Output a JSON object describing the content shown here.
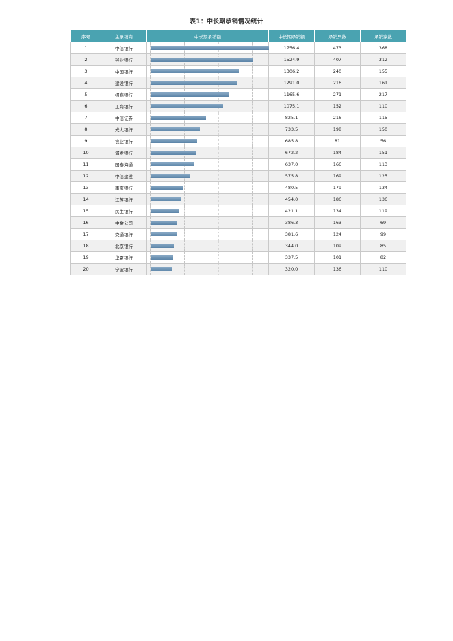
{
  "title": "表1：中长期承销情况统计",
  "headers": [
    "序号",
    "主承销商",
    "中长期承销额",
    "中长期承销额",
    "承销只数",
    "承销家数"
  ],
  "rows": [
    {
      "rank": "1",
      "name": "中信银行",
      "amount": "1756.4",
      "count": "473",
      "issuers": "368"
    },
    {
      "rank": "2",
      "name": "兴业银行",
      "amount": "1524.9",
      "count": "407",
      "issuers": "312"
    },
    {
      "rank": "3",
      "name": "中国银行",
      "amount": "1306.2",
      "count": "240",
      "issuers": "155"
    },
    {
      "rank": "4",
      "name": "建设银行",
      "amount": "1291.0",
      "count": "216",
      "issuers": "161"
    },
    {
      "rank": "5",
      "name": "招商银行",
      "amount": "1165.6",
      "count": "271",
      "issuers": "217"
    },
    {
      "rank": "6",
      "name": "工商银行",
      "amount": "1075.1",
      "count": "152",
      "issuers": "110"
    },
    {
      "rank": "7",
      "name": "中信证券",
      "amount": "825.1",
      "count": "216",
      "issuers": "115"
    },
    {
      "rank": "8",
      "name": "光大银行",
      "amount": "733.5",
      "count": "198",
      "issuers": "150"
    },
    {
      "rank": "9",
      "name": "农业银行",
      "amount": "685.8",
      "count": "81",
      "issuers": "56"
    },
    {
      "rank": "10",
      "name": "浦发银行",
      "amount": "672.2",
      "count": "184",
      "issuers": "151"
    },
    {
      "rank": "11",
      "name": "国泰海通",
      "amount": "637.0",
      "count": "166",
      "issuers": "113"
    },
    {
      "rank": "12",
      "name": "中信建投",
      "amount": "575.8",
      "count": "169",
      "issuers": "125"
    },
    {
      "rank": "13",
      "name": "南京银行",
      "amount": "480.5",
      "count": "179",
      "issuers": "134"
    },
    {
      "rank": "14",
      "name": "江苏银行",
      "amount": "454.0",
      "count": "186",
      "issuers": "136"
    },
    {
      "rank": "15",
      "name": "民生银行",
      "amount": "421.1",
      "count": "134",
      "issuers": "119"
    },
    {
      "rank": "16",
      "name": "中金公司",
      "amount": "386.3",
      "count": "163",
      "issuers": "69"
    },
    {
      "rank": "17",
      "name": "交通银行",
      "amount": "381.6",
      "count": "124",
      "issuers": "99"
    },
    {
      "rank": "18",
      "name": "北京银行",
      "amount": "344.0",
      "count": "109",
      "issuers": "85"
    },
    {
      "rank": "19",
      "name": "华夏银行",
      "amount": "337.5",
      "count": "101",
      "issuers": "82"
    },
    {
      "rank": "20",
      "name": "宁波银行",
      "amount": "320.0",
      "count": "136",
      "issuers": "110"
    }
  ],
  "chart_data": {
    "type": "bar",
    "categories": [
      "中信银行",
      "兴业银行",
      "中国银行",
      "建设银行",
      "招商银行",
      "工商银行",
      "中信证券",
      "光大银行",
      "农业银行",
      "浦发银行",
      "国泰海通",
      "中信建投",
      "南京银行",
      "江苏银行",
      "民生银行",
      "中金公司",
      "交通银行",
      "北京银行",
      "华夏银行",
      "宁波银行"
    ],
    "values": [
      1756.4,
      1524.9,
      1306.2,
      1291.0,
      1165.6,
      1075.1,
      825.1,
      733.5,
      685.8,
      672.2,
      637.0,
      575.8,
      480.5,
      454.0,
      421.1,
      386.3,
      381.6,
      344.0,
      337.5,
      320.0
    ],
    "xlim": [
      0,
      1756.4
    ],
    "colors": {
      "bar": "#6f95b8",
      "header": "#4aa3b1"
    }
  }
}
